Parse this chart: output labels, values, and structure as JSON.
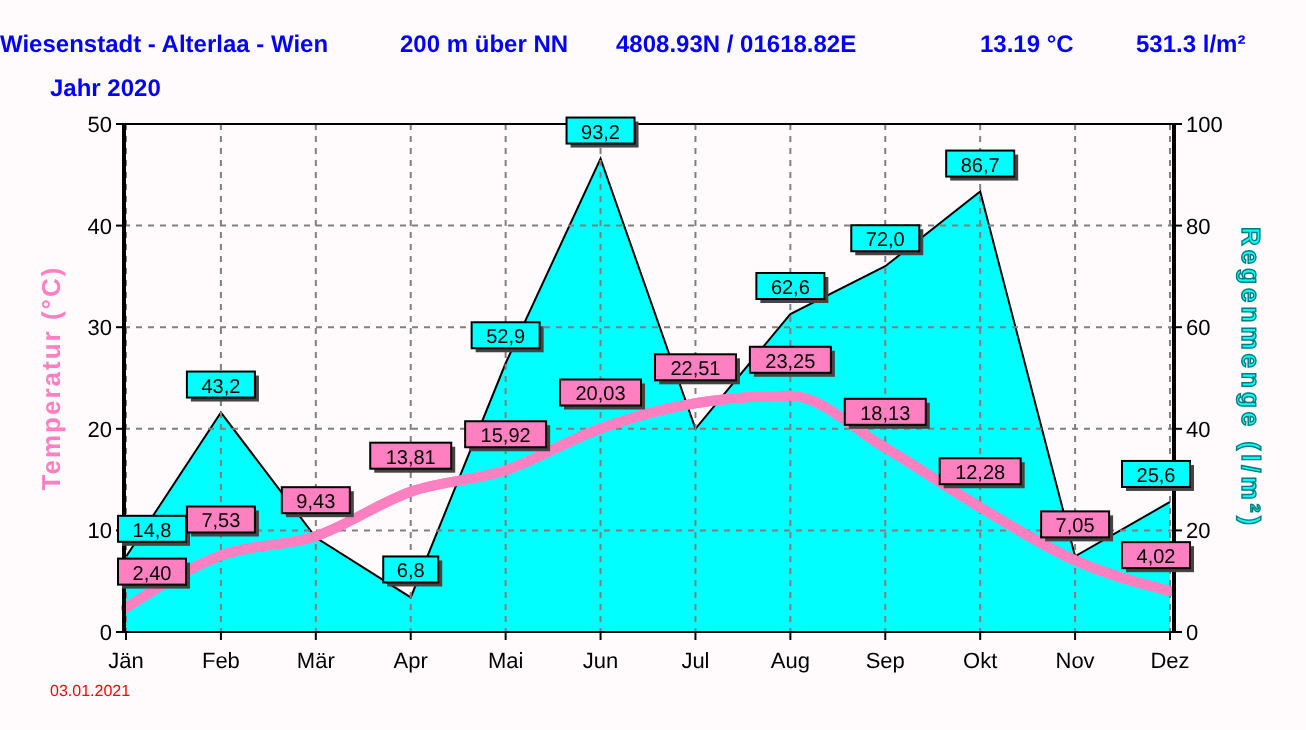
{
  "chart_data": {
    "type": "line",
    "title": "Wiesenstadt - Alterlaa - Wien",
    "subtitle": "Jahr 2020",
    "annotations": [
      "200 m über NN",
      "4808.93N / 01618.82E",
      "13.19 °C",
      "531.3 l/m²",
      "03.01.2021"
    ],
    "categories": [
      "Jän",
      "Feb",
      "Mär",
      "Apr",
      "Mai",
      "Jun",
      "Jul",
      "Aug",
      "Sep",
      "Okt",
      "Nov",
      "Dez"
    ],
    "ylabel": "Temperatur  (°C)",
    "y2label": "Regenmenge  (l/m²)",
    "ylim": [
      0,
      50
    ],
    "yticks": [
      0,
      10,
      20,
      30,
      40,
      50
    ],
    "y2lim": [
      0,
      100
    ],
    "y2ticks": [
      0,
      20,
      40,
      60,
      80,
      100
    ],
    "grid": true,
    "series": [
      {
        "type": "area",
        "axis": "y2",
        "color": "#00ffff",
        "values": [
          14.8,
          43.2,
          18.6,
          6.8,
          52.9,
          93.2,
          40.0,
          62.6,
          72.0,
          86.7,
          14.9,
          25.6
        ],
        "value_labels": [
          "14,8",
          "43,2",
          null,
          "6,8",
          "52,9",
          "93,2",
          null,
          "62,6",
          "72,0",
          "86,7",
          null,
          "25,6"
        ]
      },
      {
        "axis": "y",
        "color": "#ff80c0",
        "values": [
          2.4,
          7.53,
          9.43,
          13.81,
          15.92,
          20.03,
          22.51,
          23.25,
          18.13,
          12.28,
          7.05,
          4.02
        ],
        "value_labels": [
          "2,40",
          "7,53",
          "9,43",
          "13,81",
          "15,92",
          "20,03",
          "22,51",
          "23,25",
          "18,13",
          "12,28",
          "7,05",
          "4,02"
        ]
      }
    ]
  }
}
